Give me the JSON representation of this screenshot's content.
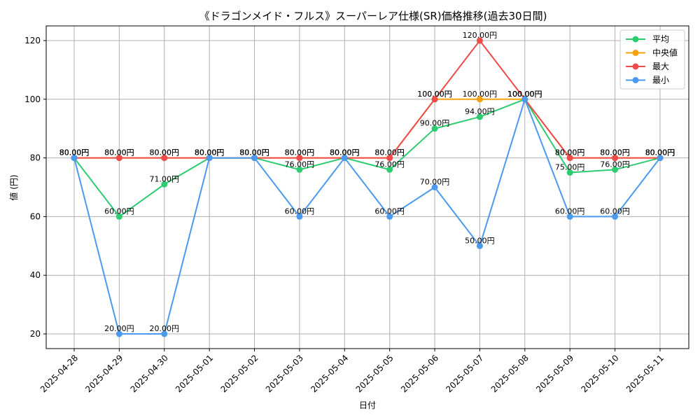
{
  "chart_data": {
    "type": "line",
    "title": "《ドラゴンメイド・フルス》スーパーレア仕様(SR)価格推移(過去30日間)",
    "xlabel": "日付",
    "ylabel": "値 (円)",
    "ylim": [
      15,
      125
    ],
    "yticks": [
      20,
      40,
      60,
      80,
      100,
      120
    ],
    "grid": true,
    "legend_position": "top-right",
    "categories": [
      "2025-04-28",
      "2025-04-29",
      "2025-04-30",
      "2025-05-01",
      "2025-05-02",
      "2025-05-03",
      "2025-05-04",
      "2025-05-05",
      "2025-05-06",
      "2025-05-07",
      "2025-05-08",
      "2025-05-09",
      "2025-05-10",
      "2025-05-11"
    ],
    "series": [
      {
        "name": "平均",
        "color": "#2ecc71",
        "values": [
          80,
          60,
          71,
          80,
          80,
          76,
          80,
          76,
          90,
          94,
          100,
          75,
          76,
          80
        ],
        "labels": [
          "80.00円",
          "60.00円",
          "71.00円",
          "80.00円",
          "80.00円",
          "76.00円",
          "80.00円",
          "76.00円",
          "90.00円",
          "94.00円",
          "100.00円",
          "75.00円",
          "76.00円",
          "80.00円"
        ]
      },
      {
        "name": "中央値",
        "color": "#f5a30a",
        "values": [
          80,
          80,
          80,
          80,
          80,
          80,
          80,
          80,
          100,
          100,
          100,
          80,
          80,
          80
        ],
        "labels": [
          "80.00円",
          "80.00円",
          "80.00円",
          "80.00円",
          "80.00円",
          "80.00円",
          "80.00円",
          "80.00円",
          "100.00円",
          "100.00円",
          "100.00円",
          "80.00円",
          "80.00円",
          "80.00円"
        ]
      },
      {
        "name": "最大",
        "color": "#ef4b4b",
        "values": [
          80,
          80,
          80,
          80,
          80,
          80,
          80,
          80,
          100,
          120,
          100,
          80,
          80,
          80
        ],
        "labels": [
          "80.00円",
          "80.00円",
          "80.00円",
          "80.00円",
          "80.00円",
          "80.00円",
          "80.00円",
          "80.00円",
          "100.00円",
          "120.00円",
          "100.00円",
          "80.00円",
          "80.00円",
          "80.00円"
        ]
      },
      {
        "name": "最小",
        "color": "#4a9af0",
        "values": [
          80,
          20,
          20,
          80,
          80,
          60,
          80,
          60,
          70,
          50,
          100,
          60,
          60,
          80
        ],
        "labels": [
          "80.00円",
          "20.00円",
          "20.00円",
          "80.00円",
          "80.00円",
          "60.00円",
          "80.00円",
          "60.00円",
          "70.00円",
          "50.00円",
          "100.00円",
          "60.00円",
          "60.00円",
          "80.00円"
        ]
      }
    ]
  }
}
